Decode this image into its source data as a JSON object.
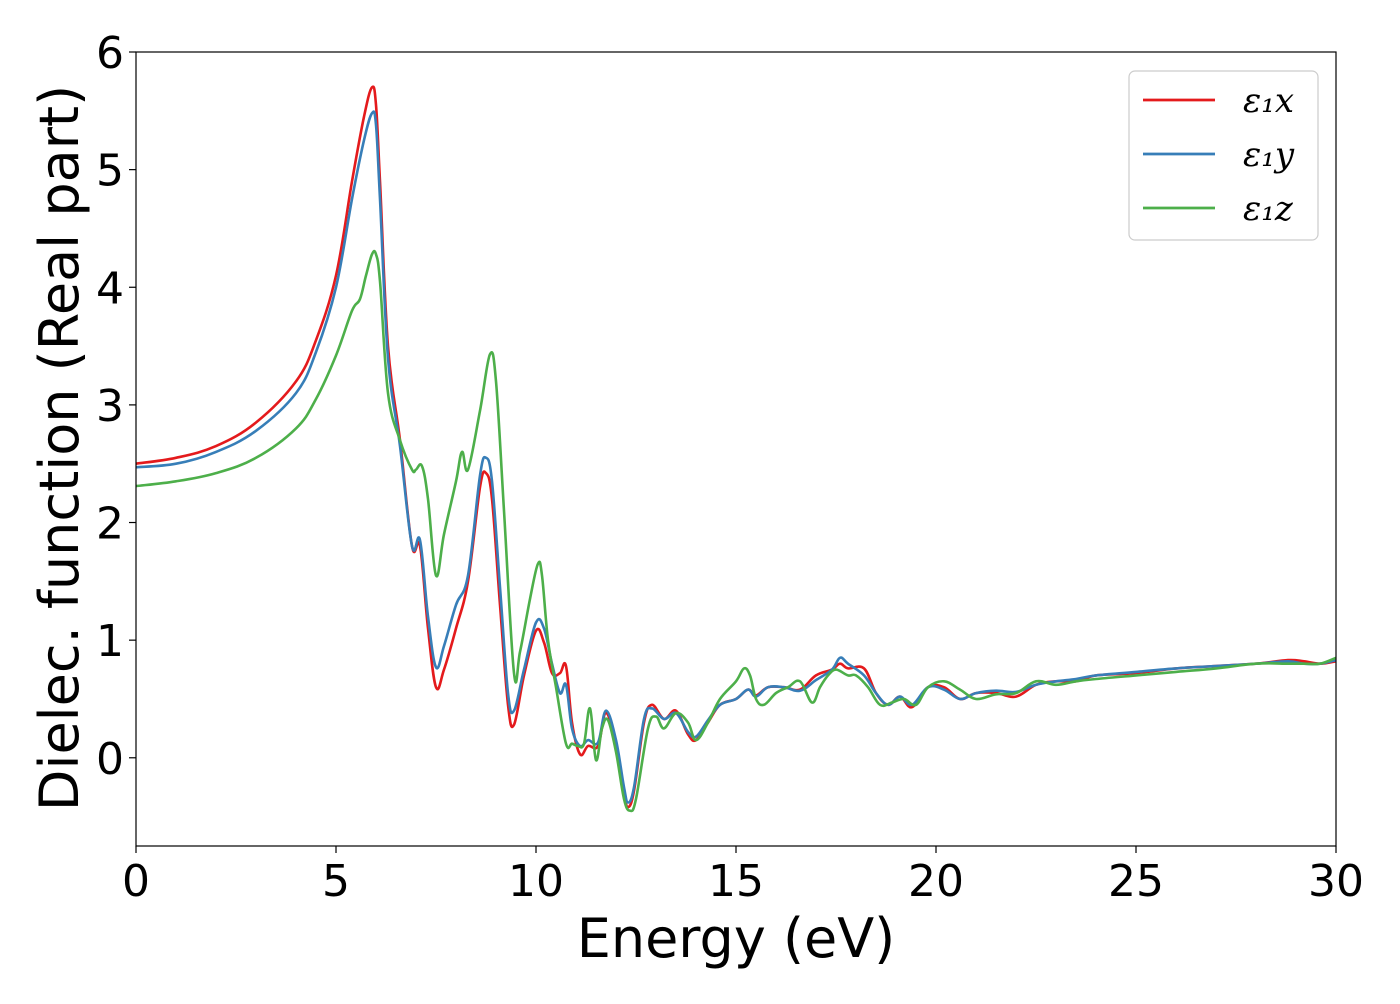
{
  "chart_data": {
    "type": "line",
    "title": "",
    "xlabel": "Energy (eV)",
    "ylabel": "Dielec. function (Real part)",
    "xlim": [
      0,
      30
    ],
    "ylim": [
      -0.75,
      6
    ],
    "xticks": [
      0,
      5,
      10,
      15,
      20,
      25,
      30
    ],
    "yticks": [
      0,
      1,
      2,
      3,
      4,
      5,
      6
    ],
    "grid": false,
    "legend_position": "top-right",
    "series": [
      {
        "name": "ε₁x",
        "color": "#e41a1c",
        "x": [
          0,
          1,
          2,
          3,
          4,
          4.5,
          5,
          5.4,
          5.7,
          5.9,
          6.0,
          6.1,
          6.3,
          6.6,
          6.9,
          7.1,
          7.3,
          7.5,
          7.7,
          8.0,
          8.3,
          8.6,
          8.75,
          8.9,
          9.1,
          9.3,
          9.45,
          9.7,
          10.0,
          10.2,
          10.4,
          10.6,
          10.75,
          10.9,
          11.1,
          11.3,
          11.55,
          11.75,
          12.0,
          12.2,
          12.3,
          12.45,
          12.7,
          12.9,
          13.2,
          13.5,
          13.8,
          14.0,
          14.3,
          14.6,
          15.0,
          15.3,
          15.5,
          15.8,
          16.2,
          16.6,
          17.0,
          17.4,
          17.6,
          17.8,
          18.2,
          18.5,
          18.8,
          19.1,
          19.4,
          19.8,
          20.2,
          20.6,
          21.0,
          21.5,
          22.0,
          22.5,
          23.0,
          23.5,
          24.0,
          25.0,
          26.0,
          27.0,
          28.0,
          28.8,
          29.2,
          29.6,
          30.0
        ],
        "y": [
          2.5,
          2.55,
          2.65,
          2.85,
          3.2,
          3.55,
          4.1,
          4.9,
          5.45,
          5.7,
          5.55,
          4.9,
          3.5,
          2.7,
          1.8,
          1.8,
          1.1,
          0.6,
          0.75,
          1.1,
          1.5,
          2.3,
          2.42,
          2.2,
          1.3,
          0.45,
          0.28,
          0.7,
          1.08,
          0.98,
          0.72,
          0.72,
          0.78,
          0.3,
          0.03,
          0.1,
          0.1,
          0.38,
          0.1,
          -0.3,
          -0.42,
          -0.28,
          0.3,
          0.45,
          0.33,
          0.4,
          0.2,
          0.15,
          0.3,
          0.45,
          0.5,
          0.58,
          0.53,
          0.6,
          0.6,
          0.58,
          0.7,
          0.75,
          0.8,
          0.76,
          0.76,
          0.55,
          0.45,
          0.52,
          0.43,
          0.6,
          0.6,
          0.5,
          0.55,
          0.55,
          0.52,
          0.62,
          0.65,
          0.65,
          0.7,
          0.72,
          0.76,
          0.78,
          0.8,
          0.83,
          0.82,
          0.8,
          0.82
        ]
      },
      {
        "name": "ε₁y",
        "color": "#377eb8",
        "x": [
          0,
          1,
          2,
          3,
          4,
          4.5,
          5,
          5.4,
          5.7,
          5.9,
          6.0,
          6.1,
          6.3,
          6.6,
          6.9,
          7.1,
          7.3,
          7.5,
          7.7,
          8.0,
          8.3,
          8.6,
          8.75,
          8.9,
          9.1,
          9.3,
          9.45,
          9.7,
          10.0,
          10.2,
          10.4,
          10.6,
          10.75,
          10.9,
          11.1,
          11.3,
          11.55,
          11.75,
          12.0,
          12.2,
          12.3,
          12.45,
          12.7,
          12.9,
          13.2,
          13.5,
          13.8,
          14.0,
          14.3,
          14.6,
          15.0,
          15.3,
          15.5,
          15.8,
          16.2,
          16.6,
          17.0,
          17.4,
          17.6,
          17.8,
          18.2,
          18.5,
          18.8,
          19.1,
          19.4,
          19.8,
          20.2,
          20.6,
          21.0,
          21.5,
          22.0,
          22.5,
          23.0,
          23.5,
          24.0,
          25.0,
          26.0,
          27.0,
          28.0,
          28.8,
          29.2,
          29.6,
          30.0
        ],
        "y": [
          2.47,
          2.5,
          2.6,
          2.78,
          3.1,
          3.45,
          4.0,
          4.75,
          5.25,
          5.48,
          5.38,
          4.75,
          3.4,
          2.65,
          1.8,
          1.85,
          1.2,
          0.77,
          0.95,
          1.3,
          1.55,
          2.4,
          2.55,
          2.35,
          1.45,
          0.55,
          0.4,
          0.75,
          1.15,
          1.1,
          0.8,
          0.55,
          0.62,
          0.25,
          0.1,
          0.15,
          0.13,
          0.4,
          0.15,
          -0.25,
          -0.38,
          -0.25,
          0.33,
          0.42,
          0.33,
          0.38,
          0.22,
          0.18,
          0.32,
          0.45,
          0.5,
          0.58,
          0.52,
          0.6,
          0.6,
          0.57,
          0.66,
          0.75,
          0.85,
          0.8,
          0.7,
          0.55,
          0.45,
          0.52,
          0.45,
          0.6,
          0.58,
          0.5,
          0.55,
          0.57,
          0.56,
          0.62,
          0.65,
          0.67,
          0.7,
          0.73,
          0.76,
          0.78,
          0.8,
          0.82,
          0.8,
          0.8,
          0.83
        ]
      },
      {
        "name": "ε₁z",
        "color": "#4daf4a",
        "x": [
          0,
          1,
          2,
          3,
          4,
          4.5,
          5,
          5.4,
          5.6,
          5.75,
          5.9,
          6.0,
          6.1,
          6.3,
          6.6,
          6.9,
          7.0,
          7.15,
          7.3,
          7.5,
          7.7,
          8.0,
          8.15,
          8.3,
          8.6,
          8.85,
          9.0,
          9.2,
          9.45,
          9.6,
          9.85,
          10.05,
          10.15,
          10.3,
          10.5,
          10.75,
          10.9,
          11.05,
          11.2,
          11.35,
          11.5,
          11.65,
          11.8,
          12.0,
          12.2,
          12.35,
          12.5,
          12.8,
          13.0,
          13.2,
          13.5,
          13.8,
          14.0,
          14.3,
          14.6,
          15.0,
          15.2,
          15.35,
          15.5,
          15.7,
          16.0,
          16.3,
          16.6,
          16.9,
          17.1,
          17.3,
          17.5,
          17.8,
          18.0,
          18.3,
          18.6,
          18.9,
          19.2,
          19.5,
          19.8,
          20.2,
          20.6,
          21.0,
          21.5,
          22.0,
          22.5,
          23.0,
          23.5,
          24.0,
          25.0,
          26.0,
          27.0,
          28.0,
          28.8,
          29.2,
          29.6,
          30.0
        ],
        "y": [
          2.31,
          2.35,
          2.42,
          2.55,
          2.8,
          3.05,
          3.42,
          3.8,
          3.9,
          4.1,
          4.28,
          4.28,
          4.05,
          3.1,
          2.7,
          2.45,
          2.45,
          2.48,
          2.2,
          1.55,
          1.9,
          2.35,
          2.6,
          2.45,
          2.95,
          3.43,
          3.2,
          2.1,
          0.72,
          0.9,
          1.35,
          1.65,
          1.55,
          1.0,
          0.6,
          0.12,
          0.12,
          0.1,
          0.12,
          0.42,
          -0.02,
          0.25,
          0.32,
          0.05,
          -0.35,
          -0.45,
          -0.35,
          0.25,
          0.35,
          0.25,
          0.38,
          0.3,
          0.15,
          0.3,
          0.5,
          0.65,
          0.76,
          0.7,
          0.5,
          0.45,
          0.55,
          0.6,
          0.65,
          0.47,
          0.6,
          0.7,
          0.75,
          0.7,
          0.7,
          0.6,
          0.45,
          0.47,
          0.5,
          0.45,
          0.6,
          0.65,
          0.58,
          0.5,
          0.54,
          0.55,
          0.65,
          0.62,
          0.65,
          0.67,
          0.7,
          0.73,
          0.76,
          0.8,
          0.8,
          0.8,
          0.8,
          0.85
        ]
      }
    ]
  }
}
